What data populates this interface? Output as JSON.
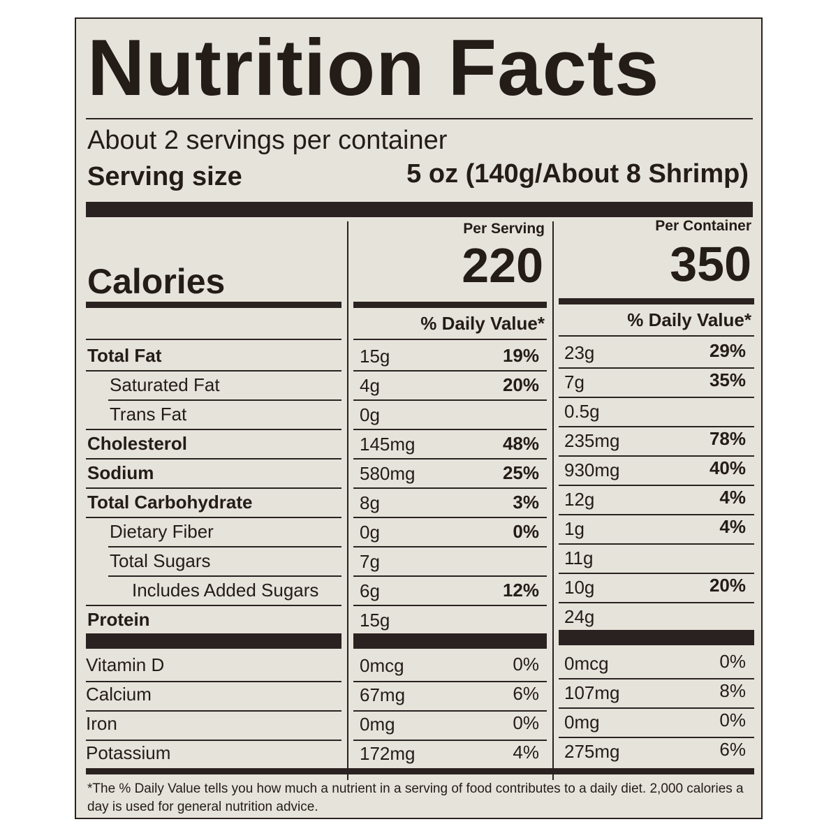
{
  "title": "Nutrition Facts",
  "servings_per_container": "About 2 servings per container",
  "serving_size_label": "Serving size",
  "serving_size_value": "5 oz (140g/About 8 Shrimp)",
  "per_serving_label": "Per Serving",
  "per_container_label": "Per Container",
  "calories_label": "Calories",
  "calories_per_serving": "220",
  "calories_per_container": "350",
  "daily_value_header": "% Daily Value*",
  "nutrients": [
    {
      "name": "Total Fat",
      "bold": true,
      "indent": 0,
      "serving_amount": "15g",
      "serving_dv": "19%",
      "container_amount": "23g",
      "container_dv": "29%"
    },
    {
      "name": "Saturated Fat",
      "bold": false,
      "indent": 1,
      "serving_amount": "4g",
      "serving_dv": "20%",
      "container_amount": "7g",
      "container_dv": "35%"
    },
    {
      "name": "Trans Fat",
      "bold": false,
      "indent": 1,
      "serving_amount": "0g",
      "serving_dv": "",
      "container_amount": "0.5g",
      "container_dv": ""
    },
    {
      "name": "Cholesterol",
      "bold": true,
      "indent": 0,
      "serving_amount": "145mg",
      "serving_dv": "48%",
      "container_amount": "235mg",
      "container_dv": "78%"
    },
    {
      "name": "Sodium",
      "bold": true,
      "indent": 0,
      "serving_amount": "580mg",
      "serving_dv": "25%",
      "container_amount": "930mg",
      "container_dv": "40%"
    },
    {
      "name": "Total Carbohydrate",
      "bold": true,
      "indent": 0,
      "serving_amount": "8g",
      "serving_dv": "3%",
      "container_amount": "12g",
      "container_dv": "4%"
    },
    {
      "name": "Dietary Fiber",
      "bold": false,
      "indent": 1,
      "serving_amount": "0g",
      "serving_dv": "0%",
      "container_amount": "1g",
      "container_dv": "4%"
    },
    {
      "name": "Total Sugars",
      "bold": false,
      "indent": 1,
      "serving_amount": "7g",
      "serving_dv": "",
      "container_amount": "11g",
      "container_dv": ""
    },
    {
      "name": "Includes Added Sugars",
      "bold": false,
      "indent": 2,
      "serving_amount": "6g",
      "serving_dv": "12%",
      "container_amount": "10g",
      "container_dv": "20%"
    },
    {
      "name": "Protein",
      "bold": true,
      "indent": 0,
      "serving_amount": "15g",
      "serving_dv": "",
      "container_amount": "24g",
      "container_dv": ""
    }
  ],
  "vitamins": [
    {
      "name": "Vitamin D",
      "serving_amount": "0mcg",
      "serving_dv": "0%",
      "container_amount": "0mcg",
      "container_dv": "0%"
    },
    {
      "name": "Calcium",
      "serving_amount": "67mg",
      "serving_dv": "6%",
      "container_amount": "107mg",
      "container_dv": "8%"
    },
    {
      "name": "Iron",
      "serving_amount": "0mg",
      "serving_dv": "0%",
      "container_amount": "0mg",
      "container_dv": "0%"
    },
    {
      "name": "Potassium",
      "serving_amount": "172mg",
      "serving_dv": "4%",
      "container_amount": "275mg",
      "container_dv": "6%"
    }
  ],
  "footnote": "*The % Daily Value tells you how much a nutrient in a serving of food contributes to a daily diet. 2,000 calories a day is used for general nutrition advice."
}
